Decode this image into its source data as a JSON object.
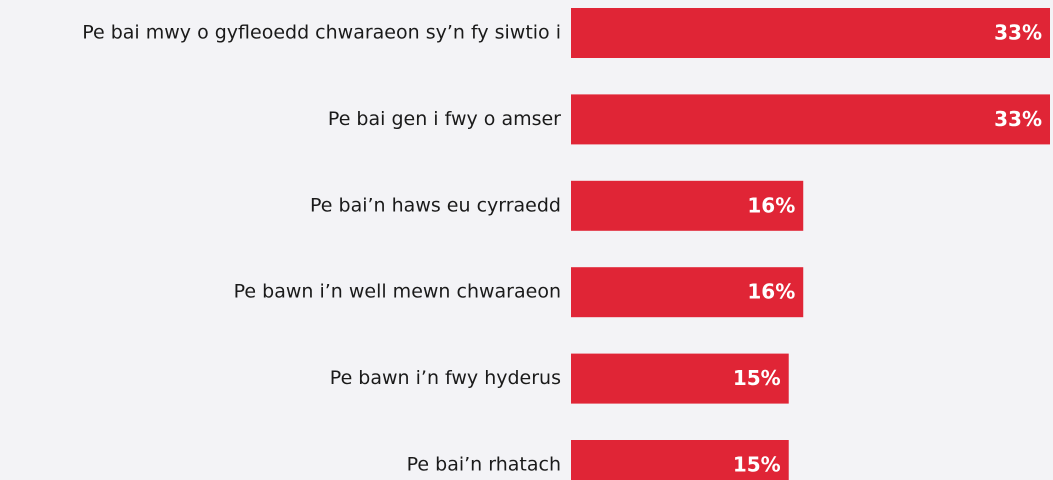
{
  "chart_data": {
    "type": "barh",
    "categories": [
      "Pe bai mwy o gyfleoedd chwaraeon sy’n fy siwtio i",
      "Pe bai gen i fwy o amser",
      "Pe bai’n haws eu cyrraedd",
      "Pe bawn i’n well mewn chwaraeon",
      "Pe bawn i’n fwy hyderus",
      "Pe bai’n rhatach"
    ],
    "values": [
      33,
      33,
      16,
      16,
      15,
      15
    ],
    "value_labels": [
      "33%",
      "33%",
      "16%",
      "16%",
      "15%",
      "15%"
    ],
    "color": "#e02536",
    "xlim": [
      0,
      33
    ]
  }
}
